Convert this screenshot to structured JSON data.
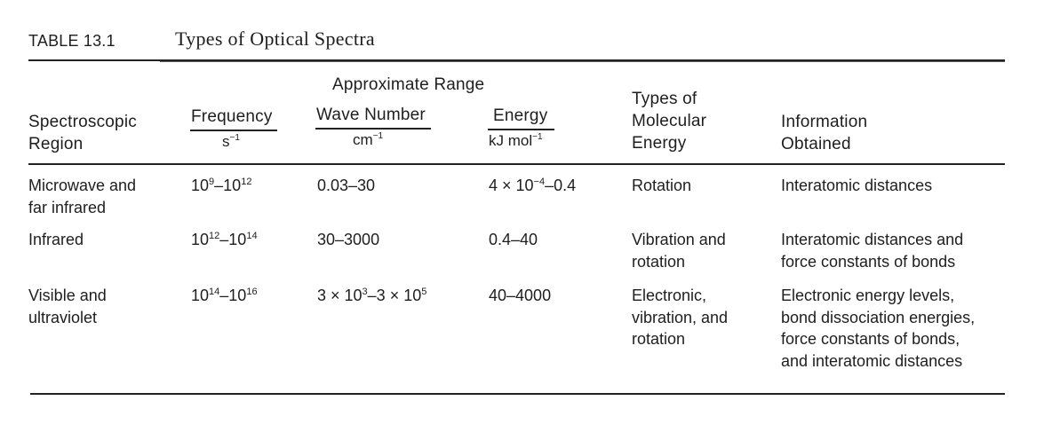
{
  "table": {
    "number": "TABLE 13.1",
    "title": "Types of Optical Spectra",
    "group_header": "Approximate Range",
    "headers": {
      "region_line1": "Spectroscopic",
      "region_line2": "Region",
      "frequency": "Frequency",
      "frequency_unit_base": "s",
      "frequency_unit_exp": "−1",
      "wavenumber": "Wave Number",
      "wavenumber_unit_base": "cm",
      "wavenumber_unit_exp": "−1",
      "energy": "Energy",
      "energy_unit_base": "kJ mol",
      "energy_unit_exp": "−1",
      "types_line1": "Types of",
      "types_line2": "Molecular",
      "types_line3": "Energy",
      "info_line1": "Information",
      "info_line2": "Obtained"
    },
    "rows": [
      {
        "region_line1": "Microwave and",
        "region_line2": "far infrared",
        "freq_a_base": "10",
        "freq_a_exp": "9",
        "freq_b_base": "–10",
        "freq_b_exp": "12",
        "wavenumber": "0.03–30",
        "energy_a": "4 × 10",
        "energy_exp": "−4",
        "energy_b": "–0.4",
        "types_line1": "Rotation",
        "info_line1": "Interatomic distances"
      },
      {
        "region_line1": "Infrared",
        "freq_a_base": "10",
        "freq_a_exp": "12",
        "freq_b_base": "–10",
        "freq_b_exp": "14",
        "wavenumber": "30–3000",
        "energy": "0.4–40",
        "types_line1": "Vibration and",
        "types_line2": "rotation",
        "info_line1": "Interatomic distances and",
        "info_line2": "force constants of bonds"
      },
      {
        "region_line1": "Visible and",
        "region_line2": "ultraviolet",
        "freq_a_base": "10",
        "freq_a_exp": "14",
        "freq_b_base": "–10",
        "freq_b_exp": "16",
        "wn_a_base": "3 × 10",
        "wn_a_exp": "3",
        "wn_b_base": "–3 × 10",
        "wn_b_exp": "5",
        "energy": "40–4000",
        "types_line1": "Electronic,",
        "types_line2": "vibration, and",
        "types_line3": "rotation",
        "info_line1": "Electronic energy levels,",
        "info_line2": "bond dissociation energies,",
        "info_line3": "force constants of bonds,",
        "info_line4": "and interatomic distances"
      }
    ]
  }
}
